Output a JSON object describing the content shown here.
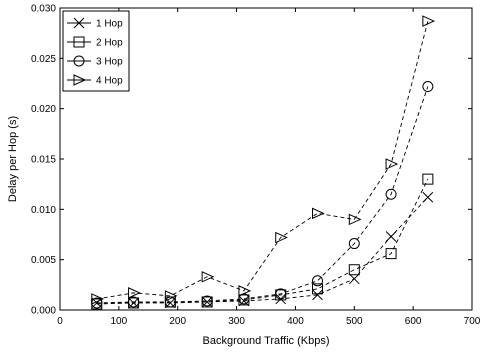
{
  "chart_data": {
    "type": "line",
    "title": "",
    "xlabel": "Background Traffic (Kbps)",
    "ylabel": "Delay per Hop (s)",
    "xlim": [
      0,
      700
    ],
    "ylim": [
      0,
      0.03
    ],
    "x_ticks": [
      "0",
      "100",
      "200",
      "300",
      "400",
      "500",
      "600",
      "700"
    ],
    "y_ticks": [
      "0.000",
      "0.005",
      "0.010",
      "0.015",
      "0.020",
      "0.025",
      "0.030"
    ],
    "grid": false,
    "legend_position": "top-left",
    "x": [
      62.5,
      125,
      187.5,
      250,
      312.5,
      375,
      437.5,
      500,
      562.5,
      625
    ],
    "series": [
      {
        "name": "1 Hop",
        "marker": "x",
        "values": [
          0.0007,
          0.0007,
          0.0007,
          0.0008,
          0.0009,
          0.0011,
          0.0015,
          0.0031,
          0.0073,
          0.0112
        ]
      },
      {
        "name": "2 Hop",
        "marker": "square",
        "values": [
          0.0006,
          0.0007,
          0.0008,
          0.0008,
          0.001,
          0.0015,
          0.0021,
          0.004,
          0.0056,
          0.013
        ]
      },
      {
        "name": "3 Hop",
        "marker": "circle",
        "values": [
          0.0007,
          0.0008,
          0.0008,
          0.0009,
          0.0011,
          0.0016,
          0.0029,
          0.0066,
          0.0115,
          0.0222
        ]
      },
      {
        "name": "4 Hop",
        "marker": "triangle-right",
        "values": [
          0.0011,
          0.0017,
          0.0014,
          0.0033,
          0.0019,
          0.0072,
          0.0096,
          0.009,
          0.0145,
          0.0287
        ]
      }
    ]
  }
}
